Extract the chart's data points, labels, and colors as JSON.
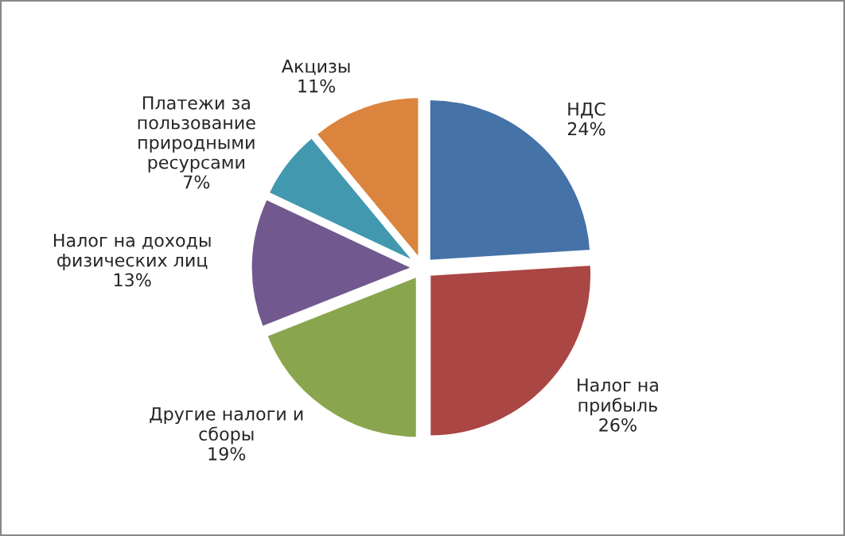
{
  "chart_data": {
    "type": "pie",
    "categories": [
      "НДС",
      "Налог на\nприбыль",
      "Другие налоги и\nсборы",
      "Налог на доходы\nфизических лиц",
      "Платежи за\nпользование\nприродными\nресурсами",
      "Акцизы"
    ],
    "values": [
      24,
      26,
      19,
      13,
      7,
      11
    ],
    "value_labels": [
      "24%",
      "26%",
      "19%",
      "13%",
      "7%",
      "11%"
    ],
    "colors": [
      "#4572a7",
      "#aa4643",
      "#89a54e",
      "#71588f",
      "#4198af",
      "#db843d"
    ],
    "legend": false
  }
}
